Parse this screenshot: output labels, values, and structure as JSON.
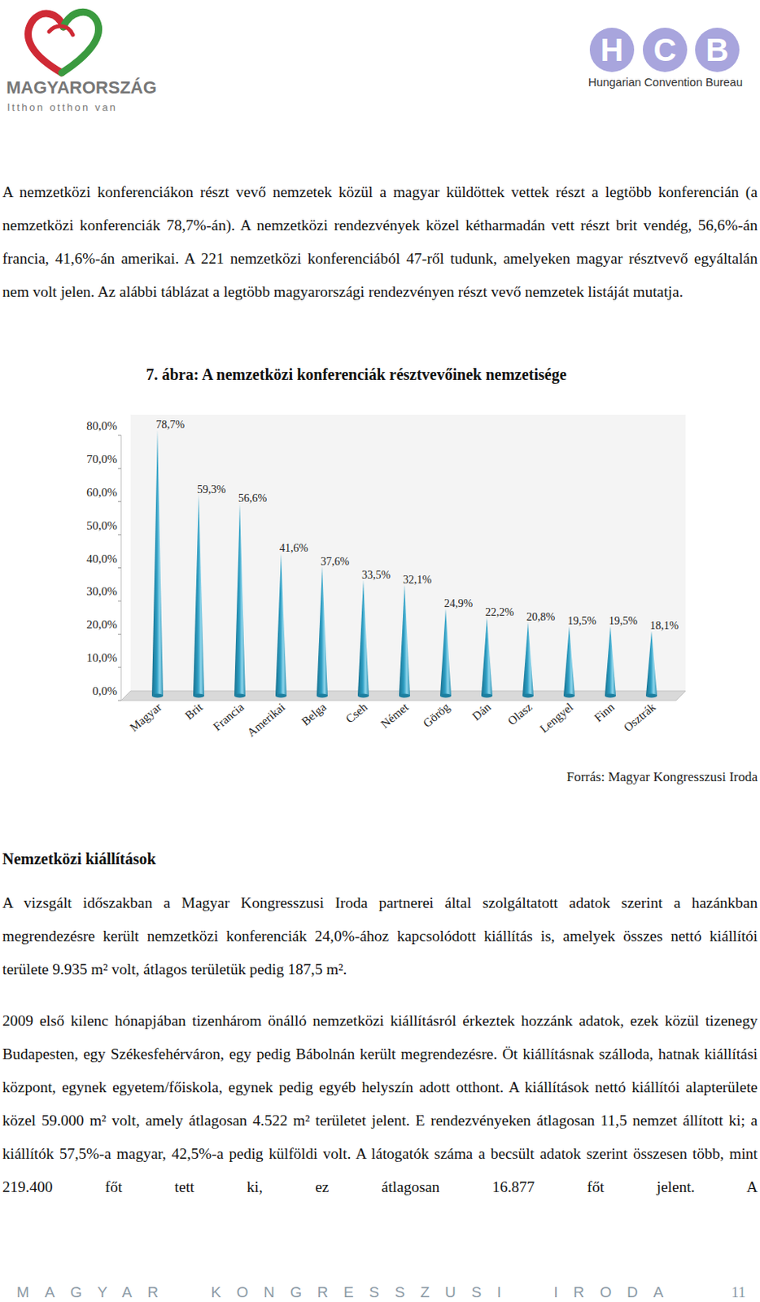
{
  "header": {
    "left_logo": {
      "title": "MAGYARORSZÁG",
      "slogan": "Itthon otthon van"
    },
    "right_logo": {
      "letters": [
        "H",
        "C",
        "B"
      ],
      "name": "Hungarian Convention Bureau"
    }
  },
  "paragraphs": [
    "A nemzetközi konferenciákon részt vevő nemzetek közül a magyar küldöttek vettek részt a legtöbb konferencián (a nemzetközi konferenciák 78,7%-án). A nemzetközi rendezvények közel kétharmadán vett részt brit vendég, 56,6%-án francia, 41,6%-án amerikai. A 221 nemzetközi konferenciából 47-ről tudunk, amelyeken magyar résztvevő egyáltalán nem volt jelen. Az alábbi táblázat a legtöbb magyarországi rendezvényen részt vevő nemzetek listáját mutatja."
  ],
  "chart_data": {
    "type": "bar",
    "title": "7. ábra: A nemzetközi konferenciák résztvevőinek nemzetisége",
    "categories": [
      "Magyar",
      "Brit",
      "Francia",
      "Amerikai",
      "Belga",
      "Cseh",
      "Német",
      "Görög",
      "Dán",
      "Olasz",
      "Lengyel",
      "Finn",
      "Osztrák"
    ],
    "values": [
      78.7,
      59.3,
      56.6,
      41.6,
      37.6,
      33.5,
      32.1,
      24.9,
      22.2,
      20.8,
      19.5,
      19.5,
      18.1
    ],
    "value_labels": [
      "78,7%",
      "59,3%",
      "56,6%",
      "41,6%",
      "37,6%",
      "33,5%",
      "32,1%",
      "24,9%",
      "22,2%",
      "20,8%",
      "19,5%",
      "19,5%",
      "18,1%"
    ],
    "color": "#2f9fc4",
    "ylim": [
      0,
      80
    ],
    "yticks": [
      {
        "value": 0,
        "label": "0,0%"
      },
      {
        "value": 10,
        "label": "10,0%"
      },
      {
        "value": 20,
        "label": "20,0%"
      },
      {
        "value": 30,
        "label": "30,0%"
      },
      {
        "value": 40,
        "label": "40,0%"
      },
      {
        "value": 50,
        "label": "50,0%"
      },
      {
        "value": 60,
        "label": "60,0%"
      },
      {
        "value": 70,
        "label": "70,0%"
      },
      {
        "value": 80,
        "label": "80,0%"
      }
    ],
    "grid": false,
    "data_labels": true
  },
  "source": "Forrás: Magyar Kongresszusi Iroda",
  "section": {
    "heading": "Nemzetközi kiállítások",
    "paragraphs": [
      "A vizsgált időszakban a Magyar Kongresszusi Iroda partnerei által szolgáltatott adatok szerint a hazánkban megrendezésre került nemzetközi konferenciák 24,0%-ához kapcsolódott kiállítás is, amelyek összes nettó kiállítói területe 9.935 m² volt, átlagos területük pedig 187,5 m².",
      "2009 első kilenc hónapjában tizenhárom önálló nemzetközi kiállításról érkeztek hozzánk adatok, ezek közül tizenegy Budapesten, egy Székesfehérváron, egy pedig Bábolnán került megrendezésre. Öt kiállításnak szálloda, hatnak kiállítási központ, egynek egyetem/főiskola, egynek pedig egyéb helyszín adott otthont. A kiállítások nettó kiállítói alapterülete közel 59.000 m² volt, amely átlagosan 4.522 m² területet jelent. E rendezvényeken átlagosan 11,5 nemzet állított ki; a kiállítók 57,5%-a magyar, 42,5%-a pedig külföldi volt. A látogatók száma a becsült adatok szerint összesen több, mint 219.400 főt tett ki, ez átlagosan 16.877 főt jelent. A"
    ]
  },
  "footer": {
    "text": "MAGYAR KONGRESSZUSI IRODA",
    "page": 11
  }
}
